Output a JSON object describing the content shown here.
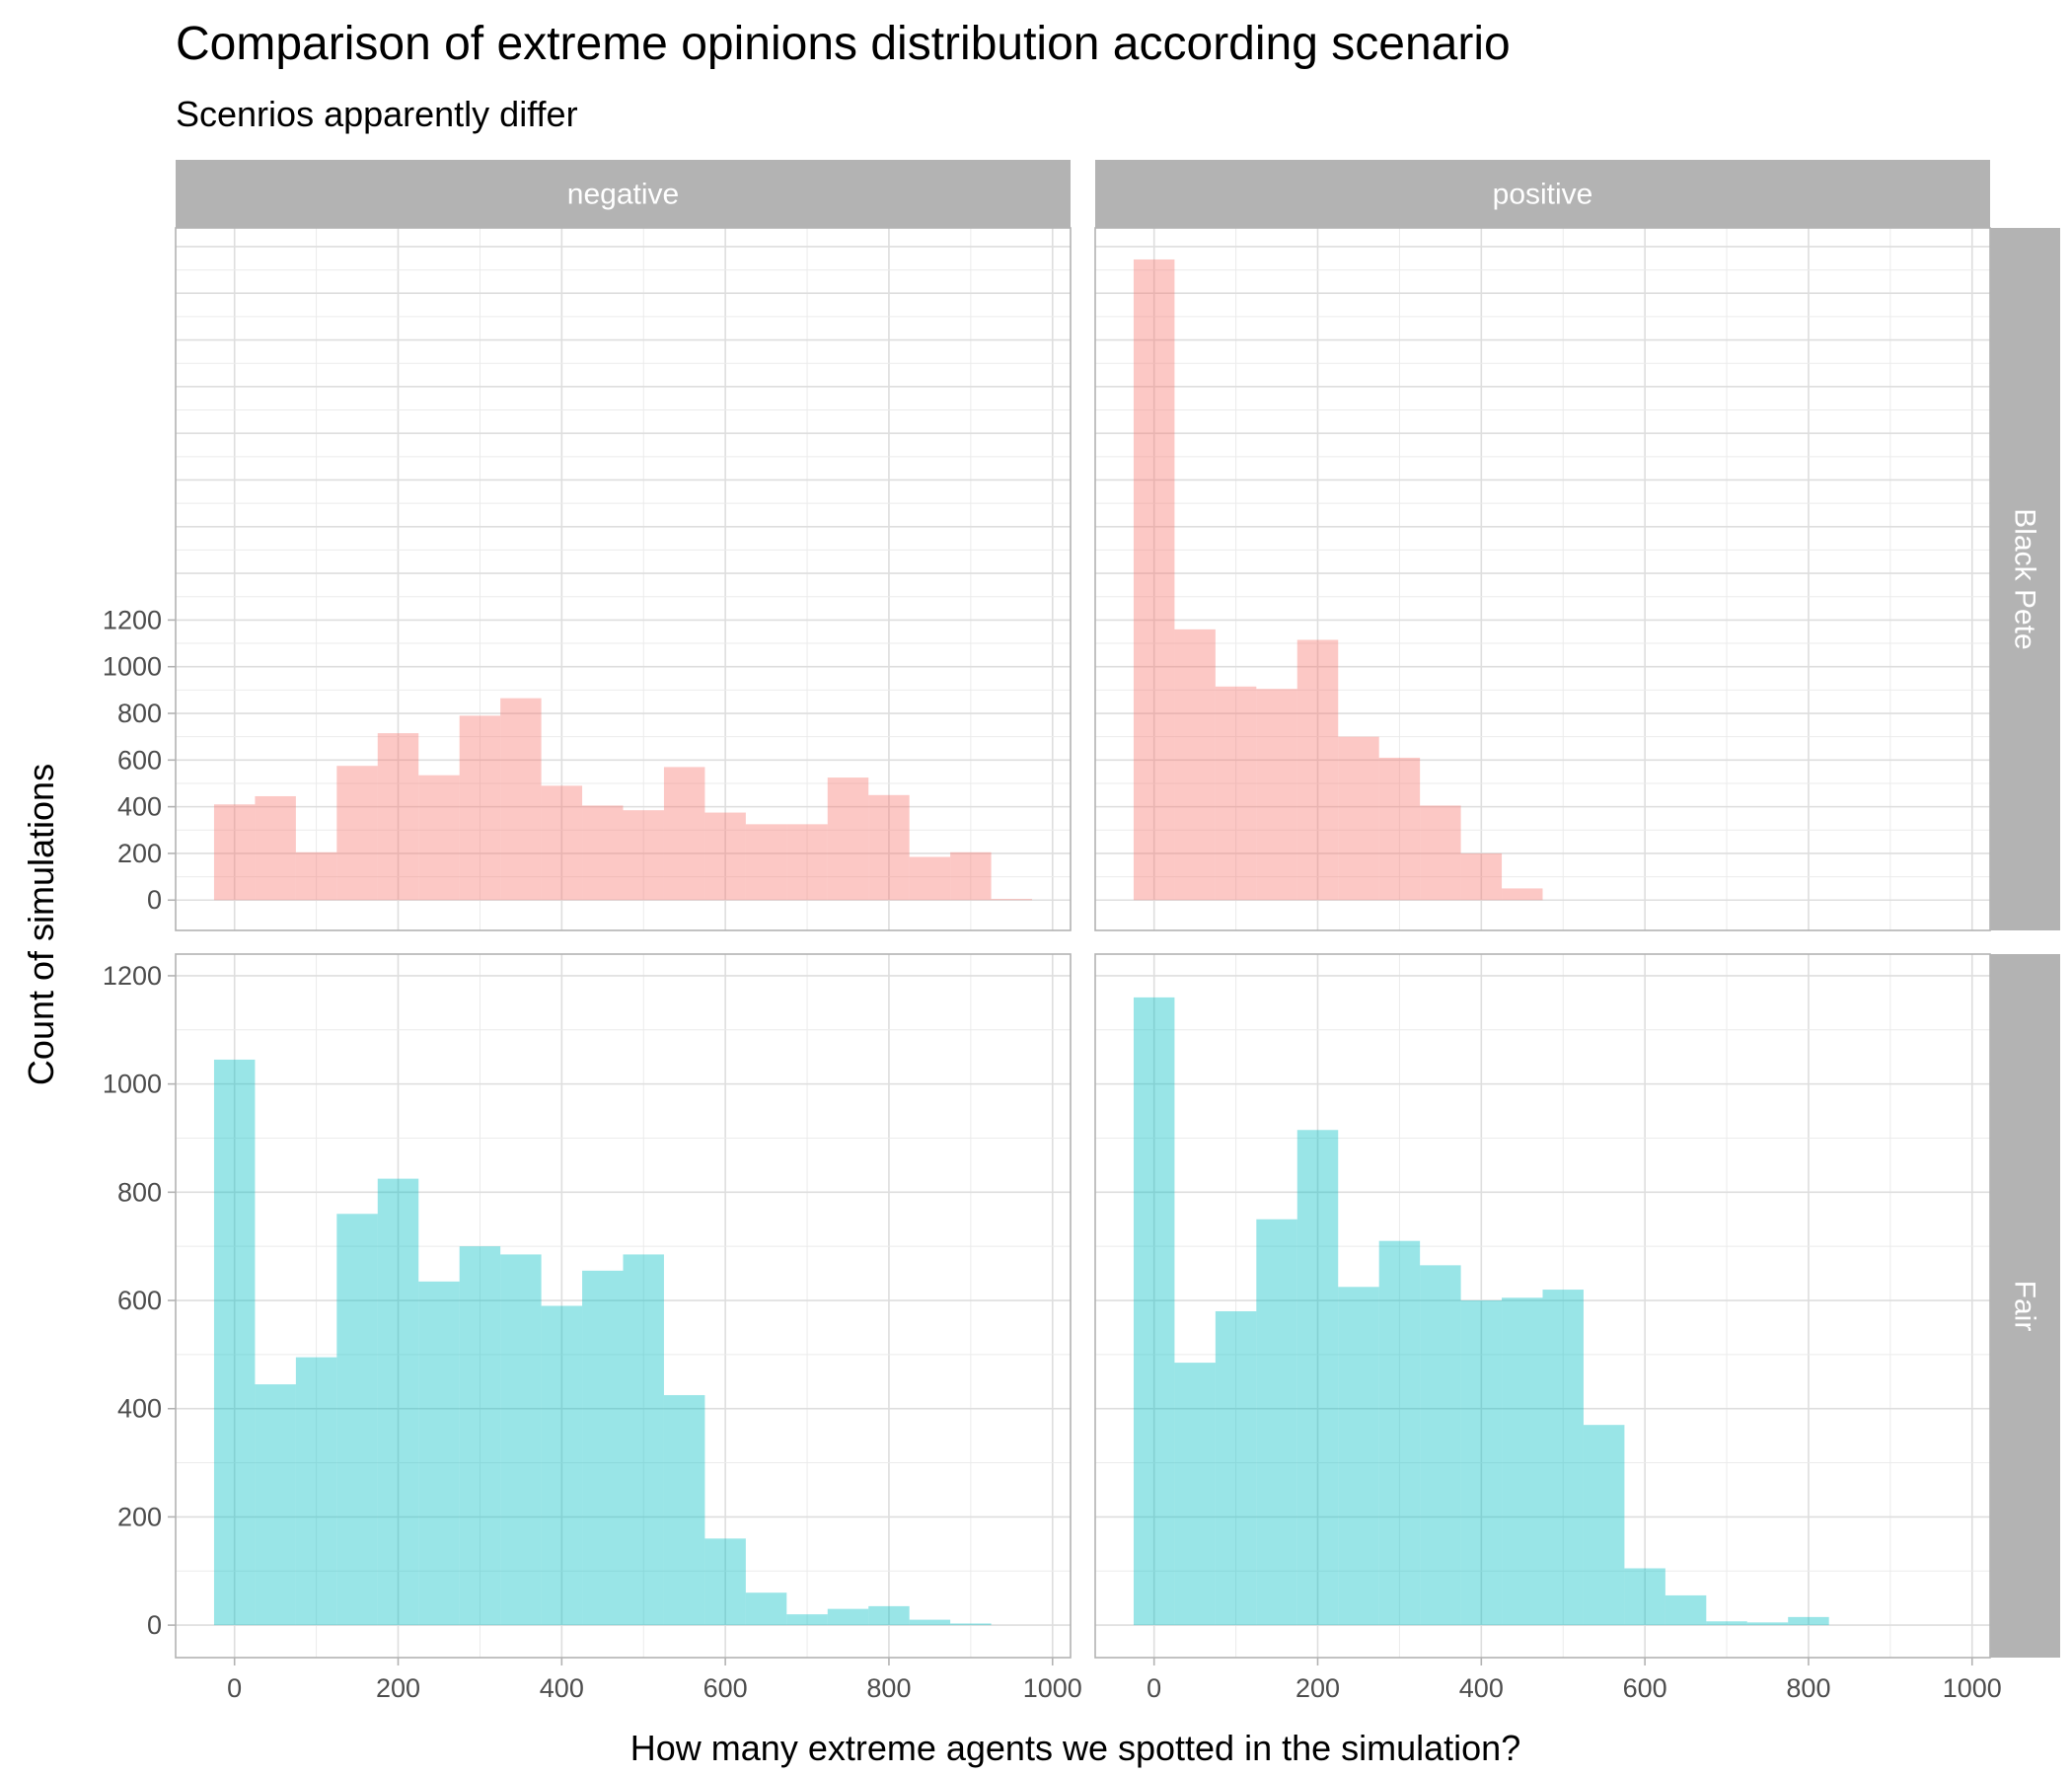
{
  "chart_data": {
    "type": "bar",
    "title": "Comparison of extreme opinions distribution according scenario",
    "subtitle": "Scenrios apparently differ",
    "xlabel": "How many extreme agents we spotted in the simulation?",
    "ylabel": "Count of simulations",
    "bin_width": 50,
    "xlim": [
      -72,
      1022
    ],
    "x_ticks": [
      0,
      200,
      400,
      600,
      800,
      1000
    ],
    "grid": true,
    "legend": "none",
    "columns": [
      "negative",
      "positive"
    ],
    "rows": [
      {
        "name": "Black Pete",
        "color": "#F8766D",
        "ylim": [
          -130,
          2880
        ],
        "y_ticks": [
          0,
          200,
          400,
          600,
          800,
          1000,
          1200
        ]
      },
      {
        "name": "Fair",
        "color": "#00BFC4",
        "ylim": [
          -60,
          1240
        ],
        "y_ticks": [
          0,
          200,
          400,
          600,
          800,
          1000,
          1200
        ]
      }
    ],
    "panels": [
      {
        "column": "negative",
        "row": "Black Pete",
        "bin_starts": [
          -25,
          25,
          75,
          125,
          175,
          225,
          275,
          325,
          375,
          425,
          475,
          525,
          575,
          625,
          675,
          725,
          775,
          825,
          875,
          925
        ],
        "values": [
          410,
          445,
          205,
          575,
          715,
          535,
          790,
          865,
          490,
          405,
          385,
          570,
          375,
          325,
          325,
          525,
          450,
          185,
          205,
          5
        ]
      },
      {
        "column": "positive",
        "row": "Black Pete",
        "bin_starts": [
          -25,
          25,
          75,
          125,
          175,
          225,
          275,
          325,
          375,
          425
        ],
        "values": [
          2745,
          1160,
          915,
          905,
          1115,
          700,
          610,
          405,
          200,
          50
        ]
      },
      {
        "column": "negative",
        "row": "Fair",
        "bin_starts": [
          -25,
          25,
          75,
          125,
          175,
          225,
          275,
          325,
          375,
          425,
          475,
          525,
          575,
          625,
          675,
          725,
          775,
          825,
          875
        ],
        "values": [
          1045,
          445,
          495,
          760,
          825,
          635,
          700,
          685,
          590,
          655,
          685,
          425,
          160,
          60,
          20,
          30,
          35,
          10,
          3
        ]
      },
      {
        "column": "positive",
        "row": "Fair",
        "bin_starts": [
          -25,
          25,
          75,
          125,
          175,
          225,
          275,
          325,
          375,
          425,
          475,
          525,
          575,
          625,
          675,
          725,
          775
        ],
        "values": [
          1160,
          485,
          580,
          750,
          915,
          625,
          710,
          665,
          600,
          605,
          620,
          370,
          105,
          55,
          7,
          5,
          15
        ]
      }
    ]
  }
}
